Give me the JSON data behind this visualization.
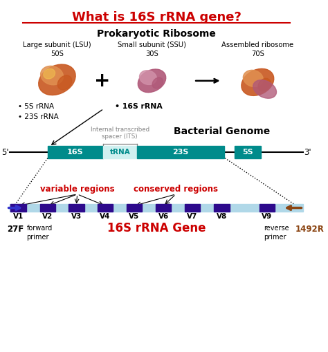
{
  "title": "What is 16S rRNA gene?",
  "title_color": "#cc0000",
  "bg_color": "#ffffff",
  "prokaryotic_label": "Prokaryotic Ribosome",
  "large_subunit_label": "Large subunit (LSU)\n50S",
  "small_subunit_label": "Small subunit (SSU)\n30S",
  "assembled_label": "Assembled ribosome\n70S",
  "lsu_bullets": "• 5S rRNA\n• 23S rRNA",
  "ssu_bullet": "• 16S rRNA",
  "genome_label": "Bacterial Genome",
  "its_label": "Internal transcribed\nspacer (ITS)",
  "segments": [
    "16S",
    "tRNA",
    "23S",
    "5S"
  ],
  "segment_colors": [
    "#008B8B",
    "#d0f0f0",
    "#008B8B",
    "#008B8B"
  ],
  "segment_text_colors": [
    "#ffffff",
    "#008B8B",
    "#ffffff",
    "#ffffff"
  ],
  "variable_label": "variable regions",
  "conserved_label": "conserved regions",
  "v_labels": [
    "V1",
    "V2",
    "V3",
    "V4",
    "V5",
    "V6",
    "V7",
    "V8",
    "V9"
  ],
  "gene_bar_bg": "#b0d8e8",
  "v_block_color": "#2d0a8c",
  "v_positions": [
    0.55,
    1.5,
    2.42,
    3.35,
    4.28,
    5.22,
    6.15,
    7.1,
    8.55
  ],
  "forward_primer": "27F",
  "reverse_primer": "1492R",
  "forward_color": "#3333cc",
  "reverse_color": "#8B4513",
  "gene_label": "16S rRNA Gene",
  "gene_label_color": "#cc0000"
}
